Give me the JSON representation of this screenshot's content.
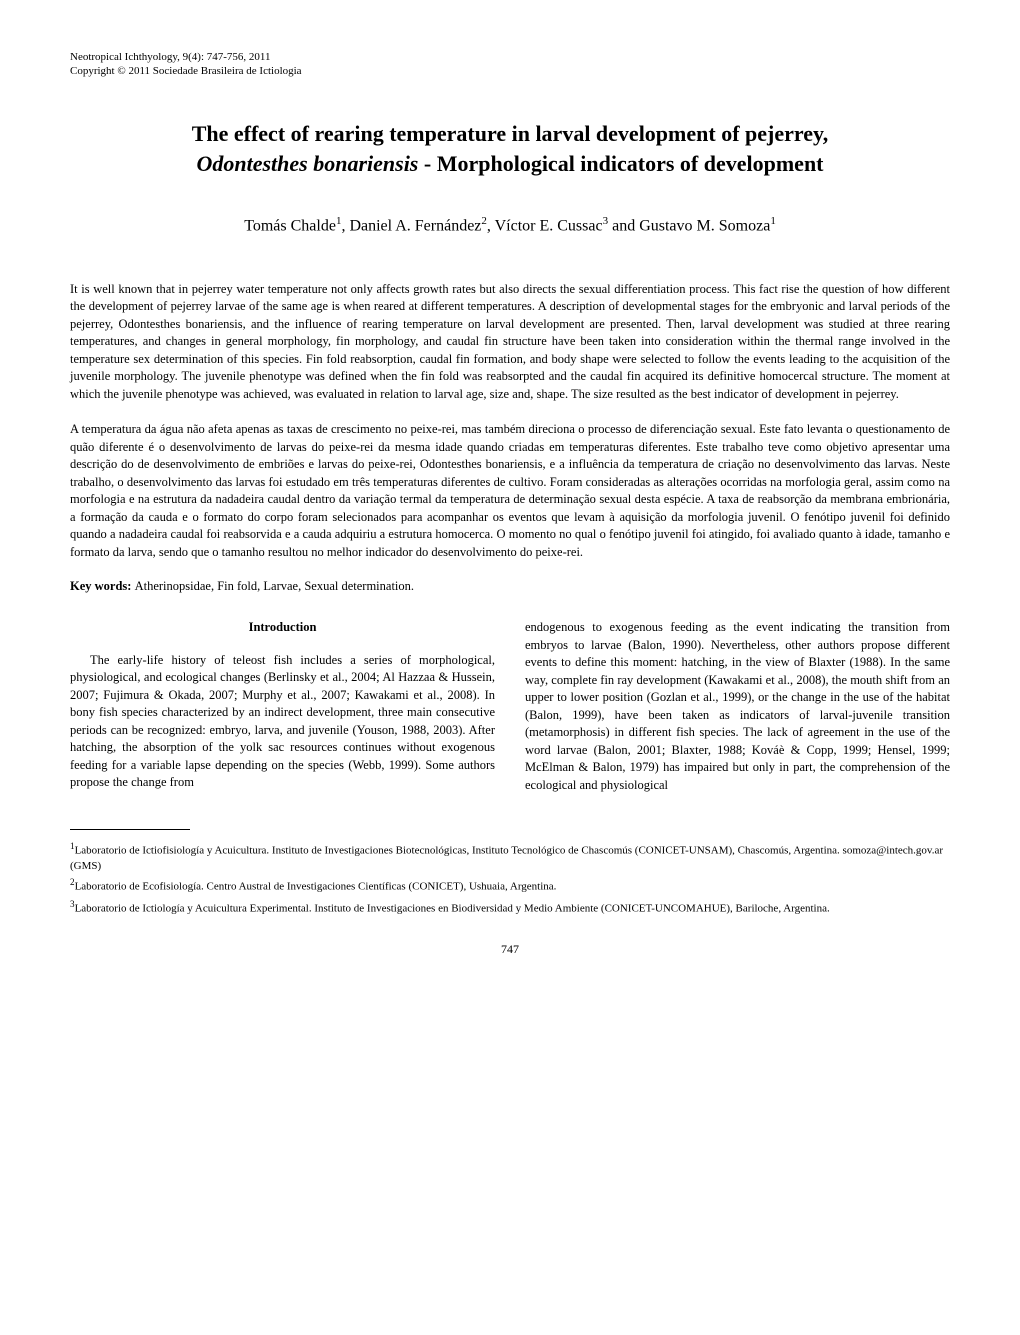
{
  "header": {
    "journal": "Neotropical Ichthyology, 9(4): 747-756, 2011",
    "copyright": "Copyright © 2011 Sociedade Brasileira de Ictiologia"
  },
  "title": {
    "line1": "The effect of rearing temperature in larval development of pejerrey,",
    "species": "Odontesthes bonariensis",
    "line2_rest": " - Morphological indicators of development"
  },
  "authors": {
    "a1": "Tomás Chalde",
    "a1_sup": "1",
    "sep1": ", ",
    "a2": "Daniel A. Fernández",
    "a2_sup": "2",
    "sep2": ", ",
    "a3": "Víctor E. Cussac",
    "a3_sup": "3",
    "sep3": " and ",
    "a4": "Gustavo M. Somoza",
    "a4_sup": "1"
  },
  "abstract_en": "It is well known that in pejerrey water temperature not only affects growth rates but also directs the sexual differentiation process. This fact rise the question of how different the development of pejerrey larvae of the same age is when reared at different temperatures. A description of developmental stages for the embryonic and larval periods of the pejerrey, Odontesthes bonariensis, and the influence of rearing temperature on larval development are presented. Then, larval development was studied at three rearing temperatures, and changes in general morphology, fin morphology, and caudal fin structure have been taken into consideration within the thermal range involved in the temperature sex determination of this species. Fin fold reabsorption, caudal fin formation, and body shape were selected to follow the events leading to the acquisition of the juvenile morphology. The juvenile phenotype was defined when the fin fold was reabsorpted and the caudal fin acquired its definitive homocercal structure. The moment at which the juvenile phenotype was achieved, was evaluated in relation to larval age, size and, shape. The size resulted as the best indicator of development in pejerrey.",
  "abstract_pt": "A temperatura da água não afeta apenas as taxas de crescimento no peixe-rei, mas também direciona o processo de diferenciação sexual. Este fato levanta o questionamento de quão diferente é o desenvolvimento de larvas do peixe-rei da mesma idade quando criadas em temperaturas diferentes. Este trabalho teve como objetivo apresentar uma descrição do de desenvolvimento de embriões e larvas do peixe-rei, Odontesthes bonariensis, e a influência da temperatura de criação no desenvolvimento das larvas. Neste trabalho, o desenvolvimento das larvas foi estudado em três temperaturas diferentes de cultivo. Foram consideradas as alterações ocorridas na morfologia geral, assim como na morfologia e na estrutura da nadadeira caudal dentro da variação termal da temperatura de determinação sexual desta espécie. A taxa de reabsorção da membrana embrionária, a formação da cauda e o formato do corpo foram selecionados para acompanhar os eventos que levam à aquisição da morfologia juvenil. O fenótipo juvenil foi definido quando a nadadeira caudal foi reabsorvida e a cauda adquiriu a estrutura homocerca. O momento no qual o fenótipo juvenil foi atingido, foi avaliado quanto à idade, tamanho e formato da larva, sendo que o tamanho resultou no melhor indicador do desenvolvimento do peixe-rei.",
  "keywords": {
    "label": "Key words: ",
    "text": "Atherinopsidae, Fin fold, Larvae, Sexual determination."
  },
  "section_intro": "Introduction",
  "body": {
    "col1": "The early-life history of teleost fish includes a series of morphological, physiological, and ecological changes (Berlinsky et al., 2004; Al Hazzaa & Hussein, 2007; Fujimura & Okada, 2007; Murphy et al., 2007; Kawakami et al., 2008). In bony fish species characterized by an indirect development, three main consecutive periods can be recognized: embryo, larva, and juvenile (Youson, 1988, 2003). After hatching, the absorption of the yolk sac resources continues without exogenous feeding for a variable lapse depending on the species (Webb, 1999). Some authors propose the change from",
    "col2": "endogenous to exogenous feeding as the event indicating the transition from embryos to larvae (Balon, 1990). Nevertheless, other authors propose different events to define this moment: hatching, in the view of Blaxter (1988). In the same way, complete fin ray development (Kawakami et al., 2008), the mouth shift from an upper to lower position (Gozlan et al., 1999), or the change in the use of the habitat (Balon, 1999), have been taken as indicators of larval-juvenile transition (metamorphosis) in different fish species. The lack of agreement in the use of the word larvae (Balon, 2001; Blaxter, 1988; Kováè & Copp, 1999; Hensel, 1999; McElman & Balon, 1979) has impaired but only in part, the comprehension of the ecological and physiological"
  },
  "affiliations": {
    "a1_sup": "1",
    "a1": "Laboratorio de Ictiofisiología y Acuicultura. Instituto de Investigaciones Biotecnológicas, Instituto Tecnológico de Chascomús (CONICET-UNSAM), Chascomús, Argentina. somoza@intech.gov.ar (GMS)",
    "a2_sup": "2",
    "a2": "Laboratorio de Ecofisiología. Centro Austral de Investigaciones Científicas (CONICET), Ushuaia, Argentina.",
    "a3_sup": "3",
    "a3": "Laboratorio de Ictiología y Acuicultura Experimental. Instituto de Investigaciones en Biodiversidad y Medio Ambiente (CONICET-UNCOMAHUE), Bariloche, Argentina."
  },
  "page_number": "747"
}
